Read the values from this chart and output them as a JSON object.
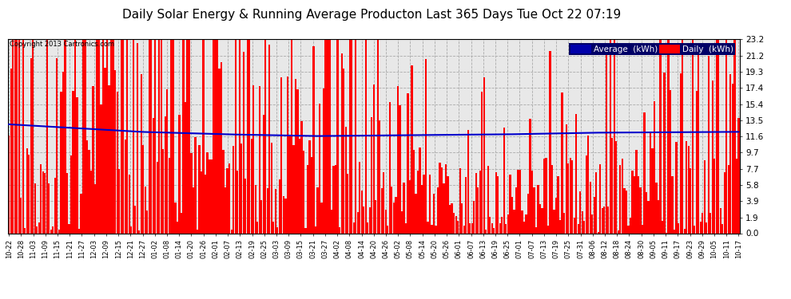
{
  "title": "Daily Solar Energy & Running Average Producton Last 365 Days Tue Oct 22 07:19",
  "copyright": "Copyright 2013 Cartronics.com",
  "yticks": [
    0.0,
    1.9,
    3.9,
    5.8,
    7.7,
    9.7,
    11.6,
    13.5,
    15.4,
    17.4,
    19.3,
    21.2,
    23.2
  ],
  "ymax": 23.2,
  "ymin": 0.0,
  "bar_color": "#FF0000",
  "avg_color": "#0000CC",
  "legend_avg_bg": "#0000AA",
  "legend_daily_bg": "#FF0000",
  "legend_avg_text": "Average  (kWh)",
  "legend_daily_text": "Daily  (kWh)",
  "title_fontsize": 11,
  "bg_color": "#E8E8E8",
  "xtick_labels": [
    "10-22",
    "10-28",
    "11-03",
    "11-09",
    "11-15",
    "11-21",
    "11-27",
    "12-03",
    "12-09",
    "12-15",
    "12-21",
    "12-27",
    "01-02",
    "01-08",
    "01-14",
    "01-20",
    "01-26",
    "02-01",
    "02-07",
    "02-13",
    "02-19",
    "02-25",
    "03-03",
    "03-09",
    "03-15",
    "03-21",
    "03-27",
    "04-02",
    "04-08",
    "04-14",
    "04-20",
    "04-26",
    "05-02",
    "05-08",
    "05-14",
    "05-20",
    "05-26",
    "06-01",
    "06-07",
    "06-13",
    "06-19",
    "06-25",
    "07-01",
    "07-07",
    "07-13",
    "07-19",
    "07-25",
    "07-31",
    "08-06",
    "08-12",
    "08-18",
    "08-24",
    "08-30",
    "09-05",
    "09-11",
    "09-17",
    "09-23",
    "09-29",
    "10-05",
    "10-11",
    "10-17"
  ],
  "num_days": 365,
  "smooth_avg_x": [
    0.0,
    0.08,
    0.18,
    0.3,
    0.42,
    0.55,
    0.68,
    0.8,
    1.0
  ],
  "smooth_avg_y": [
    13.0,
    12.6,
    12.1,
    11.8,
    11.6,
    11.7,
    11.8,
    12.0,
    12.1
  ]
}
